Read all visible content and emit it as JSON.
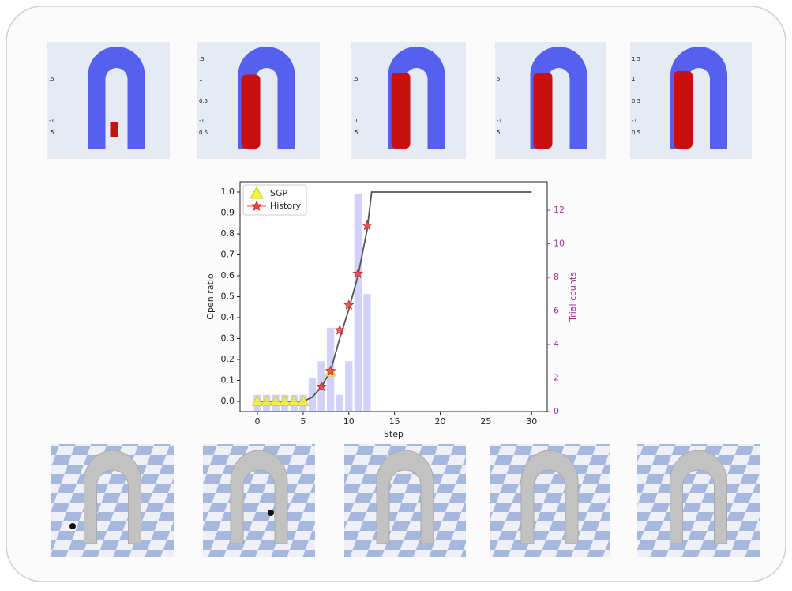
{
  "chart_data": {
    "type": "combo",
    "x_label": "Step",
    "y_label": "Open ratio",
    "y2_label": "Trial counts",
    "xlim": [
      -1.9,
      31.7
    ],
    "xticks": [
      0,
      5,
      10,
      15,
      20,
      25,
      30
    ],
    "ylim": [
      -0.049,
      1.049
    ],
    "yticks": [
      {
        "value": 0,
        "label": "0.0"
      },
      {
        "value": 0.1,
        "label": "0.1"
      },
      {
        "value": 0.2,
        "label": "0.2"
      },
      {
        "value": 0.3,
        "label": "0.3"
      },
      {
        "value": 0.4,
        "label": "0.4"
      },
      {
        "value": 0.5,
        "label": "0.5"
      },
      {
        "value": 0.6,
        "label": "0.6"
      },
      {
        "value": 0.7,
        "label": "0.7"
      },
      {
        "value": 0.8,
        "label": "0.8"
      },
      {
        "value": 0.9,
        "label": "0.9"
      },
      {
        "value": 1.0,
        "label": "1.0"
      }
    ],
    "y2lim": [
      0,
      13.7
    ],
    "y2ticks": [
      0,
      2,
      4,
      6,
      8,
      10,
      12
    ],
    "legend": "upper left",
    "bars": {
      "axis": "y2",
      "color": "#7b7bf0",
      "x": [
        0,
        1,
        2,
        3,
        4,
        5,
        6,
        7,
        8,
        9,
        10,
        11,
        12
      ],
      "values": [
        1,
        1,
        1,
        1,
        1,
        1,
        2,
        3,
        5,
        1,
        3,
        13,
        7
      ]
    },
    "curve": {
      "color": "#555555",
      "x": [
        0,
        5,
        6,
        7,
        8,
        9,
        10,
        11,
        12,
        12.5,
        30
      ],
      "values": [
        0,
        0,
        0.02,
        0.07,
        0.145,
        0.3,
        0.44,
        0.6,
        0.82,
        1.0,
        1.0
      ]
    },
    "series": [
      {
        "name": "SGP",
        "color": "#f2f23a",
        "marker": "triangle",
        "x": [
          0,
          1,
          2,
          3,
          4,
          5,
          8
        ],
        "values": [
          0,
          0,
          0,
          0,
          0,
          0,
          0.14
        ]
      },
      {
        "name": "History",
        "color": "#f04848",
        "marker": "star",
        "x": [
          7,
          8,
          9,
          10,
          11,
          12
        ],
        "values": [
          0.07,
          0.145,
          0.34,
          0.46,
          0.61,
          0.84
        ]
      }
    ]
  },
  "pointcloud_panels": [
    [
      ".5",
      "-1",
      ".5"
    ],
    [
      ".5",
      "1",
      "0.5",
      "-1",
      "0.5"
    ],
    [
      ".5",
      ".1",
      ".5"
    ],
    [
      "5",
      "-1",
      "5"
    ],
    [
      "1.5",
      "1",
      "0.5",
      "-1",
      "0.5"
    ]
  ]
}
